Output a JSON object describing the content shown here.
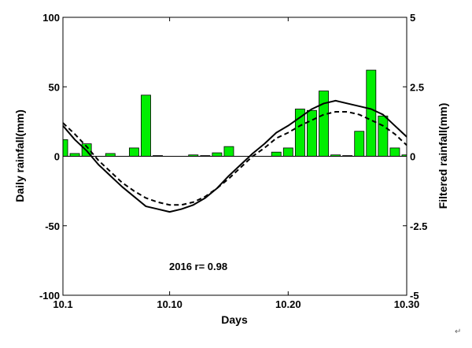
{
  "chart_data": {
    "type": "bar",
    "title": "",
    "xlabel": "Days",
    "ylabel": "Daily rainfall(mm)",
    "y2label": "Filtered rainfall(mm)",
    "annotation": "2016  r= 0.98",
    "xlim": [
      1,
      30
    ],
    "ylim": [
      -100,
      100
    ],
    "y2lim": [
      -5,
      5
    ],
    "grid": false,
    "x_ticks": [
      1,
      10,
      20,
      30
    ],
    "x_tick_labels": [
      "10.1",
      "10.10",
      "10.20",
      "10.30"
    ],
    "y_ticks": [
      -100,
      -50,
      0,
      50,
      100
    ],
    "y_tick_labels": [
      "-100",
      "-50",
      "0",
      "50",
      "100"
    ],
    "y2_ticks": [
      -5,
      -2.5,
      0,
      2.5,
      5
    ],
    "y2_tick_labels": [
      "-5",
      "-2.5",
      "0",
      "2.5",
      "5"
    ],
    "bar_color": "#00ee00",
    "bar_edge_color": "#000000",
    "bars": {
      "x": [
        1,
        2,
        3,
        4,
        5,
        6,
        7,
        8,
        9,
        10,
        11,
        12,
        13,
        14,
        15,
        16,
        17,
        18,
        19,
        20,
        21,
        22,
        23,
        24,
        25,
        26,
        27,
        28,
        29,
        30
      ],
      "values": [
        12,
        2,
        9,
        0,
        2,
        0,
        6,
        44,
        0.5,
        0,
        0,
        1,
        0.5,
        2.5,
        7,
        0,
        0,
        0,
        3,
        6,
        34,
        33,
        47,
        1,
        0.5,
        18,
        62,
        29,
        6,
        1
      ]
    },
    "series": [
      {
        "style": "solid",
        "axis": "right",
        "x": [
          1,
          2,
          3,
          4,
          5,
          6,
          7,
          8,
          9,
          10,
          11,
          12,
          13,
          14,
          15,
          16,
          17,
          18,
          19,
          20,
          21,
          22,
          23,
          24,
          25,
          26,
          27,
          28,
          29,
          30
        ],
        "values": [
          1.1,
          0.6,
          0.2,
          -0.3,
          -0.7,
          -1.1,
          -1.45,
          -1.8,
          -1.9,
          -2.0,
          -1.9,
          -1.75,
          -1.5,
          -1.15,
          -0.7,
          -0.3,
          0.1,
          0.45,
          0.85,
          1.1,
          1.4,
          1.7,
          1.9,
          2.0,
          1.9,
          1.8,
          1.7,
          1.5,
          1.1,
          0.7
        ]
      },
      {
        "style": "dashed",
        "axis": "right",
        "x": [
          1,
          2,
          3,
          4,
          5,
          6,
          7,
          8,
          9,
          10,
          11,
          12,
          13,
          14,
          15,
          16,
          17,
          18,
          19,
          20,
          21,
          22,
          23,
          24,
          25,
          26,
          27,
          28,
          29,
          30
        ],
        "values": [
          1.2,
          0.8,
          0.35,
          -0.15,
          -0.55,
          -0.95,
          -1.25,
          -1.5,
          -1.65,
          -1.75,
          -1.75,
          -1.65,
          -1.45,
          -1.15,
          -0.8,
          -0.4,
          0.0,
          0.3,
          0.65,
          0.85,
          1.1,
          1.3,
          1.5,
          1.6,
          1.6,
          1.5,
          1.3,
          1.1,
          0.8,
          0.4
        ]
      }
    ]
  }
}
